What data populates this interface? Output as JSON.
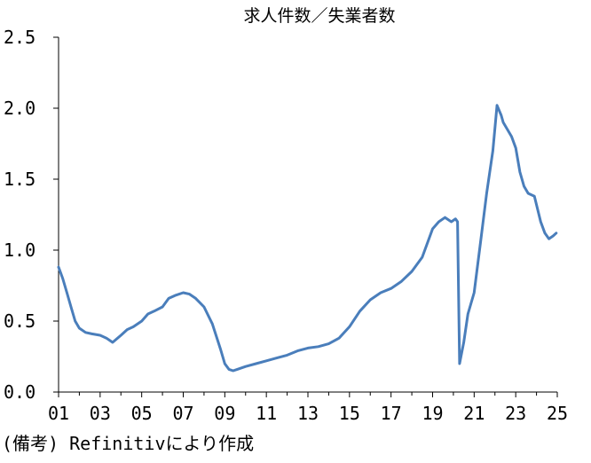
{
  "chart_data": {
    "type": "line",
    "title": "求人件数／失業者数",
    "xlabel": "",
    "ylabel": "",
    "x_ticks": [
      "01",
      "03",
      "05",
      "07",
      "09",
      "11",
      "13",
      "15",
      "17",
      "19",
      "21",
      "23",
      "25"
    ],
    "y_ticks": [
      "0.0",
      "0.5",
      "1.0",
      "1.5",
      "2.0",
      "2.5"
    ],
    "xlim": [
      2001.0,
      2025.0
    ],
    "ylim": [
      0.0,
      2.5
    ],
    "grid": false,
    "legend": "none",
    "series": [
      {
        "color": "#4a7ebb",
        "x": [
          2001.0,
          2001.2,
          2001.4,
          2001.6,
          2001.8,
          2002.0,
          2002.3,
          2002.6,
          2003.0,
          2003.3,
          2003.6,
          2004.0,
          2004.3,
          2004.6,
          2005.0,
          2005.3,
          2005.6,
          2006.0,
          2006.3,
          2006.6,
          2007.0,
          2007.3,
          2007.6,
          2008.0,
          2008.4,
          2008.8,
          2009.0,
          2009.2,
          2009.4,
          2009.6,
          2010.0,
          2010.5,
          2011.0,
          2011.5,
          2012.0,
          2012.5,
          2013.0,
          2013.5,
          2014.0,
          2014.5,
          2015.0,
          2015.5,
          2016.0,
          2016.5,
          2017.0,
          2017.5,
          2018.0,
          2018.5,
          2019.0,
          2019.3,
          2019.6,
          2019.9,
          2020.1,
          2020.2,
          2020.3,
          2020.5,
          2020.7,
          2021.0,
          2021.3,
          2021.6,
          2021.9,
          2022.1,
          2022.3,
          2022.4,
          2022.6,
          2022.8,
          2023.0,
          2023.2,
          2023.4,
          2023.6,
          2023.9,
          2024.2,
          2024.4,
          2024.6,
          2024.8,
          2024.95
        ],
        "values": [
          0.88,
          0.8,
          0.7,
          0.6,
          0.5,
          0.45,
          0.42,
          0.41,
          0.4,
          0.38,
          0.35,
          0.4,
          0.44,
          0.46,
          0.5,
          0.55,
          0.57,
          0.6,
          0.66,
          0.68,
          0.7,
          0.69,
          0.66,
          0.6,
          0.48,
          0.3,
          0.2,
          0.16,
          0.15,
          0.16,
          0.18,
          0.2,
          0.22,
          0.24,
          0.26,
          0.29,
          0.31,
          0.32,
          0.34,
          0.38,
          0.46,
          0.57,
          0.65,
          0.7,
          0.73,
          0.78,
          0.85,
          0.95,
          1.15,
          1.2,
          1.23,
          1.2,
          1.22,
          1.2,
          0.2,
          0.35,
          0.55,
          0.7,
          1.05,
          1.4,
          1.7,
          2.02,
          1.95,
          1.9,
          1.85,
          1.8,
          1.72,
          1.55,
          1.45,
          1.4,
          1.38,
          1.2,
          1.12,
          1.08,
          1.1,
          1.12
        ]
      }
    ]
  },
  "source_note": "(備考) Refinitivにより作成"
}
